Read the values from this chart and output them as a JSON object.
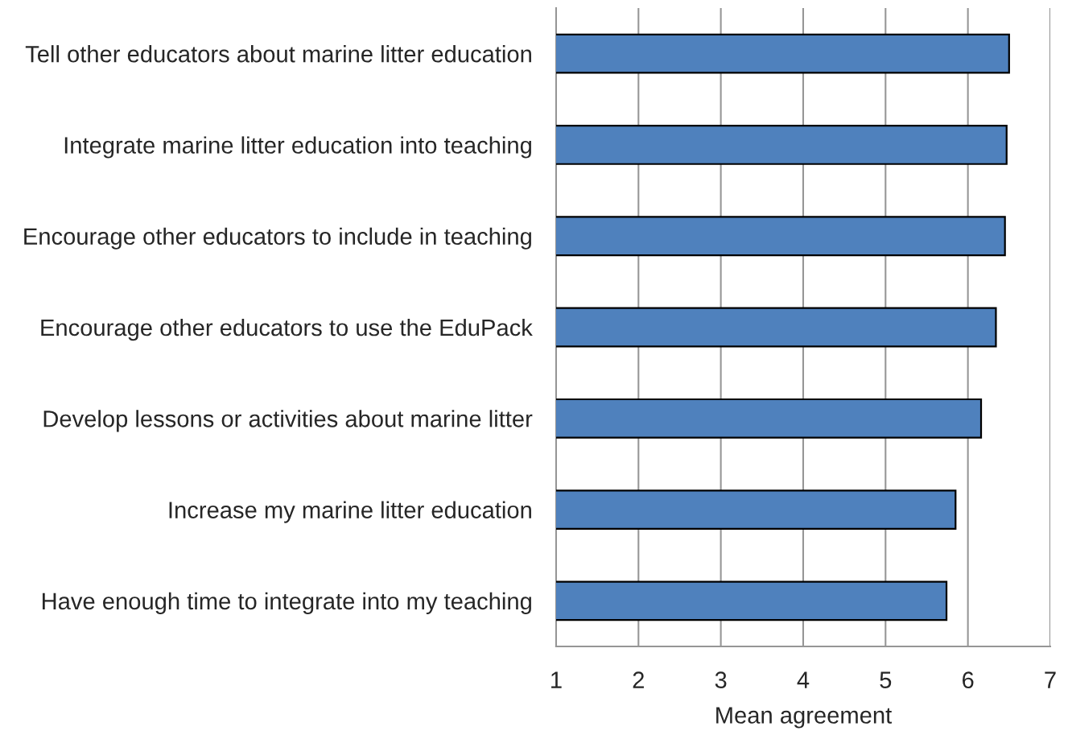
{
  "chart_data": {
    "type": "bar",
    "orientation": "horizontal",
    "categories": [
      "Tell other educators about marine litter education",
      "Integrate marine litter education into teaching",
      "Encourage other educators to include in teaching",
      "Encourage other educators to use the EduPack",
      "Develop lessons or activities about marine litter",
      "Increase my marine litter education",
      "Have enough time to integrate into my teaching"
    ],
    "values": [
      6.5,
      6.47,
      6.45,
      6.34,
      6.16,
      5.85,
      5.74
    ],
    "color": "#4f81bd",
    "xlabel": "Mean agreement",
    "xlim": [
      1,
      7
    ],
    "xticks": [
      1,
      2,
      3,
      4,
      5,
      6,
      7
    ],
    "grid": "x"
  }
}
